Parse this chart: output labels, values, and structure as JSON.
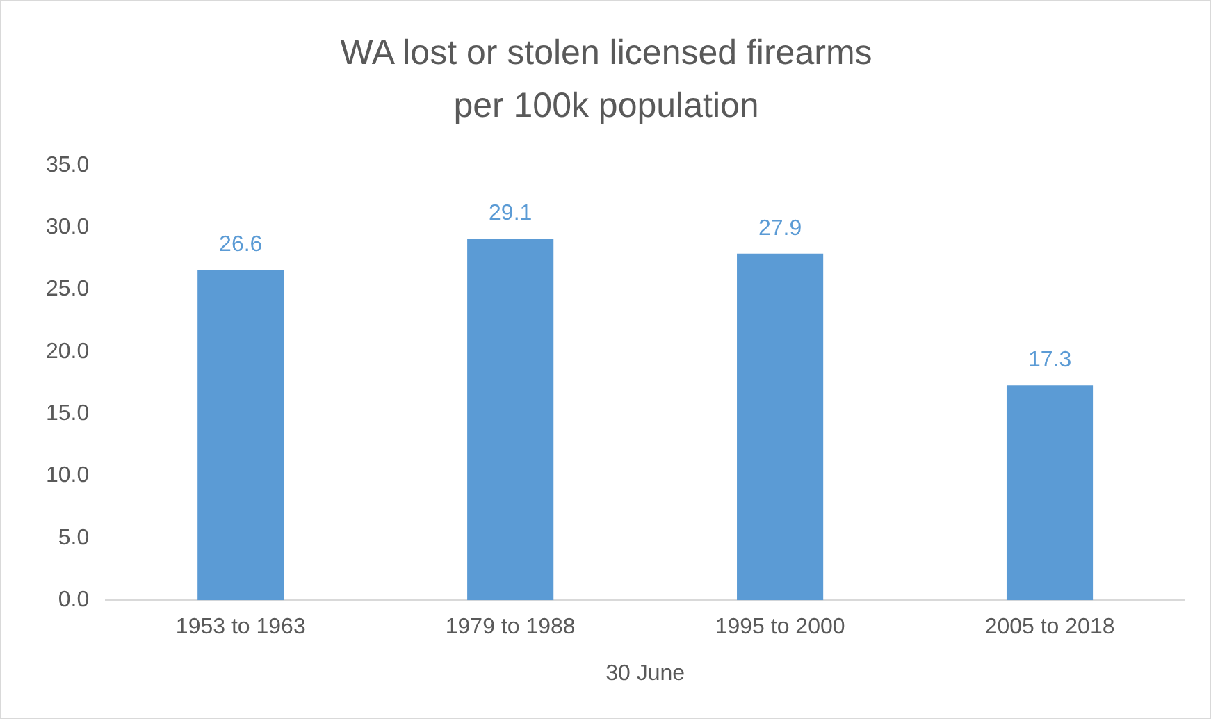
{
  "chart_data": {
    "type": "bar",
    "title": "WA lost or stolen licensed firearms per 100k population",
    "xlabel": "30 June",
    "categories": [
      "1953 to 1963",
      "1979 to 1988",
      "1995 to 2000",
      "2005 to 2018"
    ],
    "values": [
      26.6,
      29.1,
      27.9,
      17.3
    ],
    "color": "#5b9bd5",
    "ylim": [
      0,
      35
    ],
    "yticks": [
      {
        "value": 0,
        "label": "0.0"
      },
      {
        "value": 5,
        "label": "5.0"
      },
      {
        "value": 10,
        "label": "10.0"
      },
      {
        "value": 15,
        "label": "15.0"
      },
      {
        "value": 20,
        "label": "20.0"
      },
      {
        "value": 25,
        "label": "25.0"
      },
      {
        "value": 30,
        "label": "30.0"
      },
      {
        "value": 35,
        "label": "35.0"
      }
    ],
    "grid": false,
    "legend": false,
    "data_labels": true
  }
}
